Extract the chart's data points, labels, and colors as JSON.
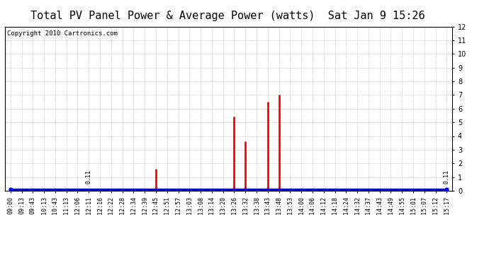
{
  "title": "Total PV Panel Power & Average Power (watts)  Sat Jan 9 15:26",
  "copyright": "Copyright 2010 Cartronics.com",
  "ylim": [
    0.0,
    12.0
  ],
  "yticks": [
    0.0,
    1.0,
    2.0,
    3.0,
    4.0,
    5.0,
    6.0,
    7.0,
    8.0,
    9.0,
    10.0,
    11.0,
    12.0
  ],
  "time_labels": [
    "09:00",
    "09:13",
    "09:43",
    "10:13",
    "10:43",
    "11:13",
    "12:06",
    "12:11",
    "12:16",
    "12:22",
    "12:28",
    "12:34",
    "12:39",
    "12:45",
    "12:51",
    "12:57",
    "13:03",
    "13:08",
    "13:14",
    "13:20",
    "13:26",
    "13:32",
    "13:38",
    "13:43",
    "13:48",
    "13:53",
    "14:00",
    "14:06",
    "14:12",
    "14:18",
    "14:24",
    "14:32",
    "14:37",
    "14:43",
    "14:49",
    "14:55",
    "15:01",
    "15:07",
    "15:12",
    "15:17"
  ],
  "red_bar_indices": [
    7,
    13,
    20,
    21,
    23,
    24
  ],
  "red_bar_values": [
    0.11,
    1.6,
    5.4,
    3.6,
    6.5,
    7.0
  ],
  "avg_power": 0.11,
  "bar_color": "#ff0000",
  "line_color": "#0000ff",
  "bg_color": "#ffffff",
  "grid_color": "#b0b0b0",
  "title_fontsize": 11,
  "copyright_fontsize": 6.5,
  "tick_fontsize": 6
}
